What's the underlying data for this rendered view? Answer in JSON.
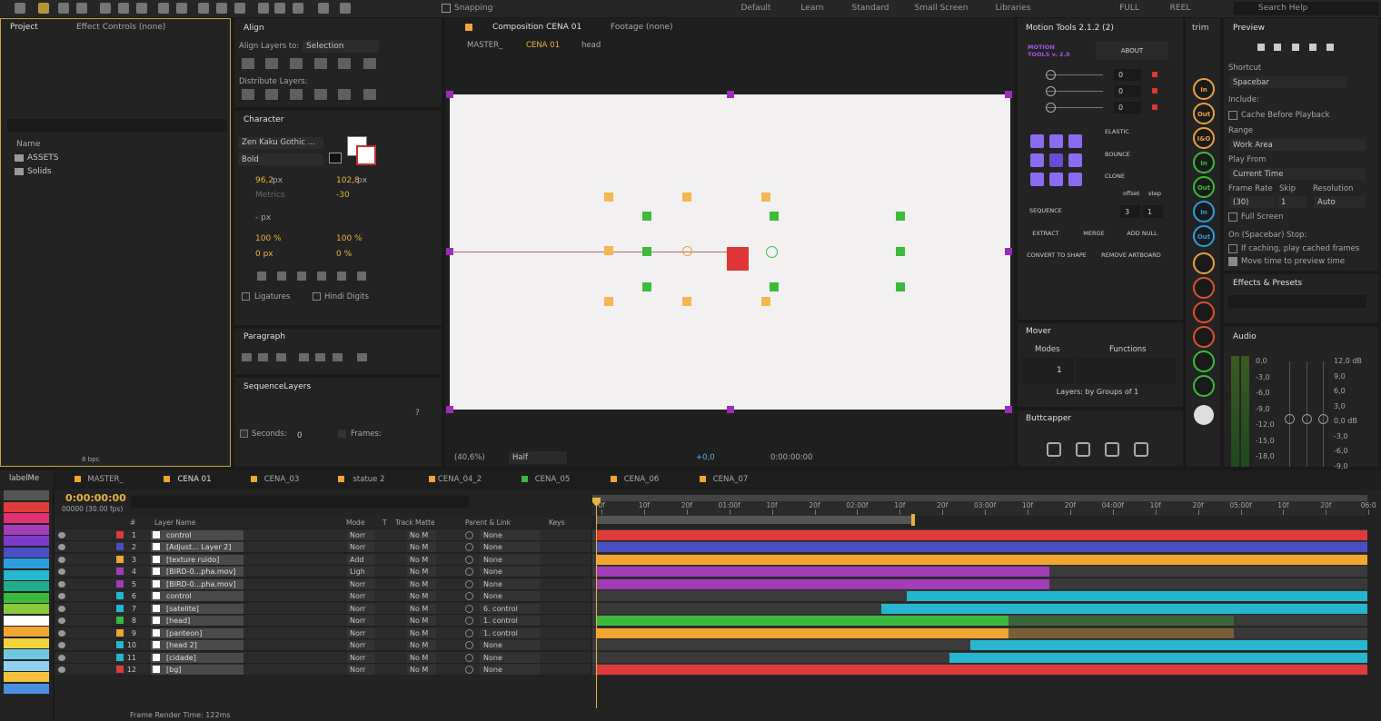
{
  "toolbar": {
    "snapping": "Snapping",
    "workspaces": [
      "Default",
      "Learn",
      "Standard",
      "Small Screen",
      "Libraries",
      "FULL",
      "REEL"
    ],
    "search": "Search Help"
  },
  "project": {
    "tabs": [
      "Project",
      "Effect Controls (none)"
    ],
    "column": "Name",
    "items": [
      "ASSETS",
      "Solids"
    ],
    "bpc": "8 bpc"
  },
  "align": {
    "title": "Align",
    "align_to_label": "Align Layers to:",
    "align_to": "Selection",
    "distribute": "Distribute Layers:"
  },
  "character": {
    "title": "Character",
    "font": "Zen Kaku Gothic ...",
    "style": "Bold",
    "size": "96,2",
    "size_unit": "px",
    "leading": "102,8",
    "leading_unit": "px",
    "kerning": "Metrics",
    "tracking": "-30",
    "stroke": "- px",
    "vscale": "100 %",
    "hscale": "100 %",
    "baseline": "0 px",
    "tsume": "0 %",
    "ligatures": "Ligatures",
    "hindi": "Hindi Digits"
  },
  "paragraph": {
    "title": "Paragraph"
  },
  "sequence_layers": {
    "title": "SequenceLayers",
    "help": "?",
    "seconds_label": "Seconds:",
    "seconds": "0",
    "frames_label": "Frames:"
  },
  "composition": {
    "tabs": [
      "Composition CENA 01",
      "Footage (none)"
    ],
    "breadcrumb": [
      "MASTER_",
      "CENA 01",
      "head"
    ],
    "zoom": "(40,6%)",
    "resolution": "Half",
    "exposure": "+0,0",
    "time": "0:00:00:00"
  },
  "motion_tools": {
    "title": "Motion Tools 2.1.2 (2)",
    "logo": "MOTION TOOLS v. 2.0",
    "about": "ABOUT",
    "sliders": [
      "0",
      "0",
      "0"
    ],
    "elastic": "ELASTIC",
    "bounce": "BOUNCE",
    "clone": "CLONE",
    "offset": "offset",
    "step": "step",
    "sequence": "SEQUENCE",
    "offset_value": "3",
    "step_value": "1",
    "buttons": [
      "EXTRACT",
      "MERGE",
      "ADD NULL",
      "CONVERT TO SHAPE",
      "REMOVE ARTBOARD"
    ]
  },
  "mover": {
    "title": "Mover",
    "modes": "Modes",
    "functions": "Functions",
    "count": "1",
    "status": "Layers: by Groups of 1"
  },
  "buttcapper": {
    "title": "Buttcapper"
  },
  "trim": {
    "title": "trim",
    "buttons": [
      "In",
      "Out",
      "I&O",
      "In",
      "Out",
      "In",
      "Out"
    ]
  },
  "preview": {
    "title": "Preview",
    "shortcut_label": "Shortcut",
    "shortcut": "Spacebar",
    "include": "Include:",
    "cache": "Cache Before Playback",
    "range_label": "Range",
    "range": "Work Area",
    "play_from_label": "Play From",
    "play_from": "Current Time",
    "frame_rate_label": "Frame Rate",
    "skip_label": "Skip",
    "resolution_label": "Resolution",
    "frame_rate": "(30)",
    "skip": "1",
    "resolution": "Auto",
    "full_screen": "Full Screen",
    "stop_label": "On (Spacebar) Stop:",
    "if_caching": "If caching, play cached frames",
    "move_time": "Move time to preview time"
  },
  "effects": {
    "title": "Effects & Presets"
  },
  "audio": {
    "title": "Audio",
    "left": [
      "0,0",
      "-3,0",
      "-6,0",
      "-9,0",
      "-12,0",
      "-15,0",
      "-18,0"
    ],
    "right": [
      "12,0 dB",
      "9,0",
      "6,0",
      "3,0",
      "0,0 dB",
      "-3,0",
      "-6,0",
      "-9,0"
    ]
  },
  "timeline": {
    "label_panel": "labelMe",
    "tabs": [
      "MASTER_",
      "CENA 01",
      "CENA_03",
      "statue 2",
      "CENA_04_2",
      "CENA_05",
      "CENA_06",
      "CENA_07"
    ],
    "timecode": "0:00:00:00",
    "frame": "00000 (30.00 fps)",
    "columns": {
      "number": "#",
      "layer_name": "Layer Name",
      "mode": "Mode",
      "t": "T",
      "track_matte": "Track Matte",
      "parent": "Parent & Link",
      "keys": "Keys"
    },
    "ruler": [
      "0f",
      "10f",
      "20f",
      "01:00f",
      "10f",
      "20f",
      "02:00f",
      "10f",
      "20f",
      "03:00f",
      "10f",
      "20f",
      "04:00f",
      "10f",
      "20f",
      "05:00f",
      "10f",
      "20f",
      "06:0"
    ],
    "layers": [
      {
        "num": 1,
        "name": "control",
        "color": "#e03b3b",
        "mode": "Norr",
        "matte": "No M",
        "parent": "None"
      },
      {
        "num": 2,
        "name": "[Adjust... Layer 2]",
        "color": "#4b4fc4",
        "mode": "Norr",
        "matte": "No M",
        "parent": "None"
      },
      {
        "num": 3,
        "name": "[texture ruido]",
        "color": "#f2a531",
        "mode": "Add",
        "matte": "No M",
        "parent": "None"
      },
      {
        "num": 4,
        "name": "[BIRD-0...pha.mov]",
        "color": "#a33cb8",
        "mode": "Ligh",
        "matte": "No M",
        "parent": "None"
      },
      {
        "num": 5,
        "name": "[BIRD-0...pha.mov]",
        "color": "#a33cb8",
        "mode": "Norr",
        "matte": "No M",
        "parent": "None"
      },
      {
        "num": 6,
        "name": "control",
        "color": "#27b6cf",
        "mode": "Norr",
        "matte": "No M",
        "parent": "None"
      },
      {
        "num": 7,
        "name": "[satelite]",
        "color": "#27b6cf",
        "mode": "Norr",
        "matte": "No M",
        "parent": "6. control"
      },
      {
        "num": 8,
        "name": "[head]",
        "color": "#3cb83c",
        "mode": "Norr",
        "matte": "No M",
        "parent": "1. control"
      },
      {
        "num": 9,
        "name": "[panteon]",
        "color": "#f2a531",
        "mode": "Norr",
        "matte": "No M",
        "parent": "1. control"
      },
      {
        "num": 10,
        "name": "[head 2]",
        "color": "#27b6cf",
        "mode": "Norr",
        "matte": "No M",
        "parent": "None"
      },
      {
        "num": 11,
        "name": "[cidade]",
        "color": "#27b6cf",
        "mode": "Norr",
        "matte": "No M",
        "parent": "None"
      },
      {
        "num": 12,
        "name": "[bg]",
        "color": "#e03b3b",
        "mode": "Norr",
        "matte": "No M",
        "parent": "None"
      }
    ],
    "render_time": "Frame Render Time: 122ms"
  }
}
